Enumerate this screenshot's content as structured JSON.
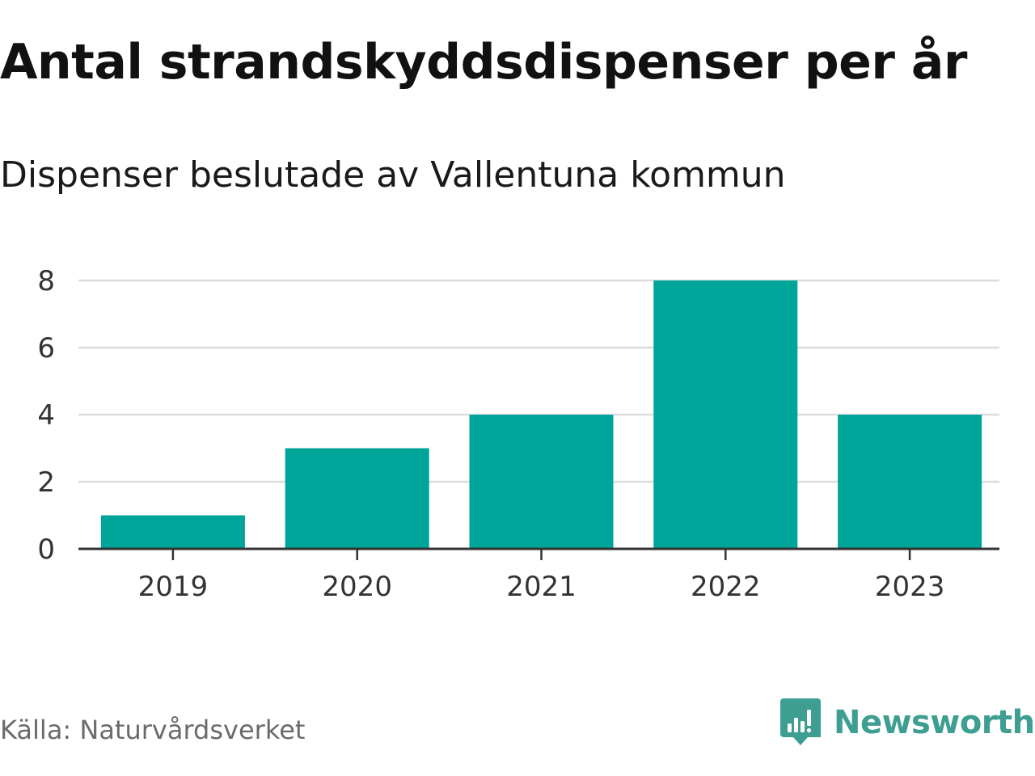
{
  "header": {
    "title": "Antal strandskyddsdispenser per år",
    "subtitle": "Dispenser beslutade av Vallentuna kommun"
  },
  "chart_data": {
    "type": "bar",
    "title": "Antal strandskyddsdispenser per år",
    "subtitle": "Dispenser beslutade av Vallentuna kommun",
    "categories": [
      "2019",
      "2020",
      "2021",
      "2022",
      "2023"
    ],
    "values": [
      1,
      3,
      4,
      8,
      4
    ],
    "xlabel": "",
    "ylabel": "",
    "ylim": [
      0,
      8
    ],
    "yticks": [
      0,
      2,
      4,
      6,
      8
    ],
    "grid": true,
    "bar_color": "#00a59a",
    "grid_color": "#dcdcdc",
    "axis_color": "#333333"
  },
  "footer": {
    "source": "Källa: Naturvårdsverket",
    "brand": "Newsworthy",
    "brand_icon": "newsworthy-logo-icon",
    "brand_color": "#3e9e92"
  }
}
